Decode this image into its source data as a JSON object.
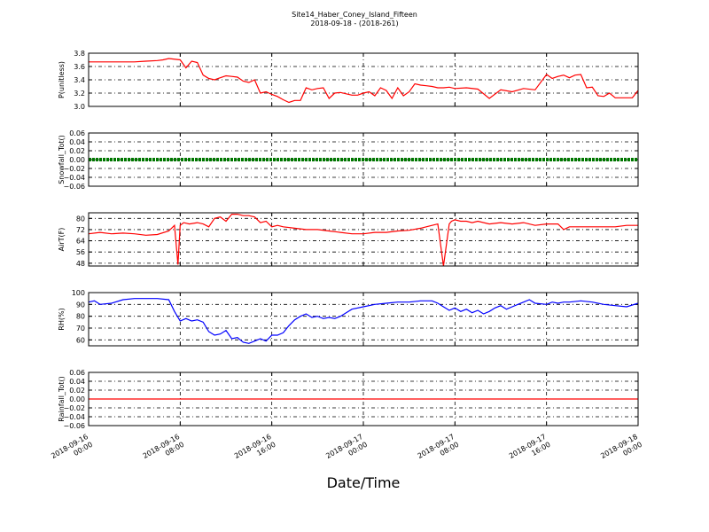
{
  "figure": {
    "title": "Site14_Haber_Coney_Island_Fifteen",
    "subtitle": "2018-09-18 - (2018-261)",
    "xlabel": "Date/Time"
  },
  "chart_data": [
    {
      "type": "line",
      "ylabel": "P(unitless)",
      "ylim": [
        3.0,
        3.8
      ],
      "yticks": [
        "3.0",
        "3.2",
        "3.4",
        "3.6",
        "3.8"
      ],
      "color": "#ff0000",
      "grid": true,
      "x_hours": [
        0,
        1,
        2,
        3,
        4,
        5,
        6,
        6.5,
        7,
        8,
        8.5,
        9,
        9.5,
        10,
        10.5,
        11,
        11.5,
        12,
        12.5,
        13,
        13.5,
        14,
        14.5,
        15,
        15.5,
        16,
        16.5,
        17,
        17.5,
        18,
        18.5,
        19,
        19.5,
        20,
        20.5,
        21,
        21.5,
        22,
        22.5,
        23,
        23.5,
        24,
        24.5,
        25,
        25.5,
        26,
        26.5,
        27,
        27.5,
        28,
        28.5,
        29,
        29.5,
        30,
        30.5,
        31,
        31.5,
        32,
        33,
        34,
        35,
        36,
        37,
        38,
        39,
        40,
        40.5,
        41,
        41.5,
        42,
        42.5,
        43,
        43.5,
        44,
        44.5,
        45,
        45.5,
        46,
        46.5,
        47,
        47.5,
        48
      ],
      "y": [
        3.67,
        3.67,
        3.67,
        3.67,
        3.67,
        3.68,
        3.69,
        3.7,
        3.72,
        3.7,
        3.58,
        3.68,
        3.66,
        3.47,
        3.42,
        3.4,
        3.43,
        3.46,
        3.45,
        3.44,
        3.38,
        3.36,
        3.4,
        3.2,
        3.22,
        3.18,
        3.15,
        3.1,
        3.06,
        3.09,
        3.09,
        3.28,
        3.25,
        3.27,
        3.28,
        3.12,
        3.2,
        3.21,
        3.19,
        3.17,
        3.17,
        3.2,
        3.22,
        3.16,
        3.28,
        3.24,
        3.12,
        3.28,
        3.16,
        3.22,
        3.34,
        3.32,
        3.31,
        3.3,
        3.28,
        3.28,
        3.29,
        3.27,
        3.28,
        3.26,
        3.12,
        3.25,
        3.22,
        3.27,
        3.25,
        3.48,
        3.42,
        3.45,
        3.47,
        3.43,
        3.47,
        3.48,
        3.28,
        3.29,
        3.16,
        3.15,
        3.2,
        3.13,
        3.13,
        3.13,
        3.13,
        3.24
      ],
      "xticks": [
        "2018-09-16 00:00",
        "2018-09-16 08:00",
        "2018-09-16 16:00",
        "2018-09-17 00:00",
        "2018-09-17 08:00",
        "2018-09-17 16:00",
        "2018-09-18 00:00"
      ]
    },
    {
      "type": "line",
      "ylabel": "Snowfall_Tot()",
      "ylim": [
        -0.06,
        0.06
      ],
      "yticks": [
        "−0.06",
        "−0.04",
        "−0.02",
        "0.00",
        "0.02",
        "0.04",
        "0.06"
      ],
      "color": "#007700",
      "grid": true,
      "x_hours": [
        0,
        48
      ],
      "y": [
        0,
        0
      ],
      "xticks": [
        "2018-09-16 00:00",
        "2018-09-16 08:00",
        "2018-09-16 16:00",
        "2018-09-17 00:00",
        "2018-09-17 08:00",
        "2018-09-17 16:00",
        "2018-09-18 00:00"
      ]
    },
    {
      "type": "line",
      "ylabel": "AirT(F)",
      "ylim": [
        46,
        84
      ],
      "yticks": [
        "48",
        "56",
        "64",
        "72",
        "80"
      ],
      "color": "#ff0000",
      "grid": true,
      "x_hours": [
        0,
        1,
        2,
        3,
        4,
        5,
        6,
        7,
        7.5,
        7.8,
        8,
        8.3,
        8.8,
        9.5,
        10,
        10.5,
        11,
        11.5,
        12,
        12.5,
        13,
        13.5,
        14,
        14.5,
        15,
        15.5,
        16,
        16.5,
        17,
        18,
        19,
        20,
        21,
        22,
        23,
        24,
        25,
        26,
        27,
        28,
        29,
        30,
        30.5,
        31,
        31.5,
        31.7,
        32,
        32.5,
        33,
        33.5,
        34,
        35,
        36,
        37,
        38,
        39,
        40,
        41,
        41.5,
        42,
        42.5,
        43,
        44,
        45,
        46,
        47,
        48
      ],
      "y": [
        69,
        70,
        69,
        69.5,
        69,
        68,
        68.5,
        71,
        75,
        47,
        75,
        77,
        76,
        77,
        76,
        74,
        80,
        81,
        78,
        83,
        83,
        82,
        82,
        81,
        77,
        78,
        74,
        75,
        74,
        73,
        72,
        72,
        71,
        70,
        69,
        69,
        70,
        70,
        71,
        71.5,
        73,
        75,
        76,
        46,
        76,
        78,
        79,
        78,
        78,
        77,
        78,
        76,
        77,
        76,
        77,
        75,
        76,
        76,
        72,
        74,
        74,
        74,
        74,
        74,
        74,
        75,
        75
      ],
      "xticks": [
        "2018-09-16 00:00",
        "2018-09-16 08:00",
        "2018-09-16 16:00",
        "2018-09-17 00:00",
        "2018-09-17 08:00",
        "2018-09-17 16:00",
        "2018-09-18 00:00"
      ]
    },
    {
      "type": "line",
      "ylabel": "RH(%)",
      "ylim": [
        55,
        100
      ],
      "yticks": [
        "60",
        "70",
        "80",
        "90",
        "100"
      ],
      "color": "#0000ff",
      "grid": true,
      "x_hours": [
        0,
        0.5,
        1,
        2,
        3,
        4,
        5,
        6,
        7,
        7.5,
        8,
        8.5,
        9,
        9.5,
        10,
        10.5,
        11,
        11.5,
        12,
        12.5,
        13,
        13.5,
        14,
        14.5,
        15,
        15.5,
        16,
        16.5,
        17,
        17.5,
        18,
        18.5,
        19,
        19.5,
        20,
        20.5,
        21,
        21.5,
        22,
        23,
        24,
        25,
        26,
        27,
        28,
        29,
        30,
        30.5,
        31,
        31.5,
        32,
        32.5,
        33,
        33.5,
        34,
        34.5,
        35,
        35.5,
        36,
        36.5,
        37,
        37.5,
        38,
        38.5,
        39,
        40,
        40.5,
        41,
        41.5,
        42,
        43,
        44,
        45,
        46,
        47,
        48
      ],
      "y": [
        92,
        93,
        90,
        91,
        94,
        95,
        95,
        95,
        94,
        84,
        76,
        78,
        76,
        77,
        75,
        67,
        64,
        65,
        68,
        61,
        62,
        58,
        57,
        59,
        61,
        59,
        64,
        64,
        66,
        72,
        77,
        80,
        82,
        79,
        80,
        78,
        79,
        78,
        80,
        86,
        88,
        90,
        91,
        92,
        92,
        93,
        93,
        91,
        88,
        85,
        87,
        84,
        86,
        83,
        85,
        82,
        84,
        87,
        89,
        86,
        88,
        90,
        92,
        94,
        91,
        90,
        92,
        91,
        92,
        92,
        93,
        92,
        90,
        89,
        88,
        91
      ],
      "xticks": [
        "2018-09-16 00:00",
        "2018-09-16 08:00",
        "2018-09-16 16:00",
        "2018-09-17 00:00",
        "2018-09-17 08:00",
        "2018-09-17 16:00",
        "2018-09-18 00:00"
      ]
    },
    {
      "type": "line",
      "ylabel": "Rainfall_Tot()",
      "ylim": [
        -0.06,
        0.06
      ],
      "yticks": [
        "−0.06",
        "−0.04",
        "−0.02",
        "0.00",
        "0.02",
        "0.04",
        "0.06"
      ],
      "color": "#ff0000",
      "grid": true,
      "x_hours": [
        0,
        48
      ],
      "y": [
        0,
        0
      ],
      "xticks": [
        "2018-09-16 00:00",
        "2018-09-16 08:00",
        "2018-09-16 16:00",
        "2018-09-17 00:00",
        "2018-09-17 08:00",
        "2018-09-17 16:00",
        "2018-09-18 00:00"
      ]
    }
  ]
}
